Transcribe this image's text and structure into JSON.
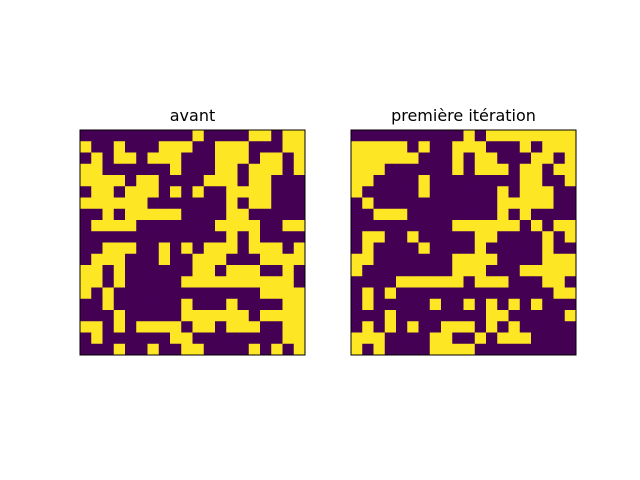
{
  "chart_data": [
    {
      "type": "heatmap",
      "title": "avant",
      "rows": 20,
      "cols": 20,
      "axes_visible": false,
      "colormap": "viridis",
      "colors": {
        "0": "#440154",
        "1": "#fde725"
      },
      "matrix": [
        [
          0,
          0,
          0,
          0,
          0,
          0,
          0,
          0,
          0,
          0,
          1,
          0,
          0,
          0,
          0,
          1,
          1,
          0,
          1,
          1
        ],
        [
          1,
          0,
          0,
          1,
          0,
          0,
          0,
          1,
          1,
          1,
          0,
          0,
          1,
          1,
          1,
          0,
          0,
          0,
          1,
          1
        ],
        [
          0,
          1,
          0,
          1,
          1,
          0,
          1,
          1,
          1,
          0,
          0,
          0,
          1,
          1,
          1,
          0,
          1,
          1,
          0,
          1
        ],
        [
          1,
          1,
          0,
          0,
          0,
          0,
          0,
          0,
          1,
          0,
          0,
          0,
          1,
          1,
          0,
          1,
          1,
          1,
          0,
          1
        ],
        [
          1,
          1,
          1,
          1,
          0,
          1,
          1,
          0,
          0,
          0,
          0,
          1,
          1,
          1,
          0,
          1,
          1,
          0,
          0,
          0
        ],
        [
          0,
          1,
          1,
          0,
          1,
          1,
          1,
          0,
          1,
          0,
          1,
          0,
          0,
          1,
          1,
          1,
          1,
          0,
          0,
          0
        ],
        [
          1,
          1,
          1,
          1,
          1,
          1,
          0,
          0,
          0,
          0,
          0,
          0,
          0,
          1,
          0,
          1,
          1,
          0,
          0,
          0
        ],
        [
          0,
          0,
          1,
          0,
          1,
          1,
          1,
          1,
          1,
          0,
          0,
          0,
          0,
          1,
          1,
          0,
          0,
          0,
          0,
          0
        ],
        [
          0,
          1,
          1,
          1,
          1,
          0,
          0,
          0,
          0,
          0,
          0,
          0,
          1,
          1,
          1,
          1,
          0,
          0,
          1,
          1
        ],
        [
          0,
          0,
          0,
          0,
          0,
          0,
          0,
          0,
          0,
          0,
          0,
          0,
          0,
          1,
          0,
          1,
          0,
          0,
          0,
          0
        ],
        [
          0,
          0,
          1,
          1,
          1,
          0,
          0,
          1,
          0,
          1,
          0,
          1,
          1,
          1,
          0,
          1,
          1,
          1,
          0,
          1
        ],
        [
          0,
          1,
          1,
          1,
          0,
          0,
          0,
          1,
          0,
          0,
          1,
          1,
          1,
          0,
          0,
          0,
          1,
          1,
          1,
          1
        ],
        [
          1,
          1,
          0,
          1,
          0,
          0,
          0,
          0,
          0,
          0,
          1,
          1,
          0,
          1,
          1,
          1,
          0,
          0,
          1,
          0
        ],
        [
          1,
          1,
          0,
          1,
          0,
          0,
          0,
          0,
          0,
          1,
          1,
          1,
          1,
          1,
          1,
          1,
          1,
          1,
          1,
          0
        ],
        [
          1,
          0,
          1,
          0,
          0,
          0,
          0,
          0,
          0,
          0,
          0,
          0,
          0,
          0,
          0,
          0,
          1,
          1,
          1,
          1
        ],
        [
          0,
          0,
          1,
          0,
          0,
          0,
          0,
          0,
          0,
          1,
          0,
          0,
          0,
          1,
          0,
          0,
          0,
          0,
          1,
          1
        ],
        [
          0,
          0,
          0,
          1,
          0,
          0,
          0,
          0,
          0,
          1,
          1,
          1,
          1,
          1,
          1,
          0,
          1,
          1,
          1,
          1
        ],
        [
          1,
          1,
          0,
          1,
          0,
          1,
          1,
          1,
          1,
          0,
          1,
          1,
          0,
          1,
          1,
          1,
          0,
          0,
          1,
          1
        ],
        [
          0,
          1,
          0,
          0,
          0,
          0,
          0,
          0,
          1,
          1,
          0,
          0,
          0,
          0,
          0,
          0,
          0,
          0,
          1,
          1
        ],
        [
          0,
          0,
          0,
          1,
          0,
          0,
          1,
          0,
          0,
          1,
          1,
          0,
          0,
          0,
          0,
          1,
          0,
          1,
          0,
          1
        ]
      ]
    },
    {
      "type": "heatmap",
      "title": "première itération",
      "rows": 20,
      "cols": 20,
      "axes_visible": false,
      "colormap": "viridis",
      "colors": {
        "0": "#440154",
        "1": "#fde725"
      },
      "matrix": [
        [
          0,
          0,
          0,
          0,
          0,
          0,
          0,
          0,
          0,
          0,
          1,
          0,
          1,
          1,
          1,
          1,
          1,
          1,
          1,
          1
        ],
        [
          1,
          1,
          1,
          1,
          1,
          0,
          1,
          0,
          0,
          1,
          1,
          1,
          0,
          0,
          0,
          1,
          0,
          1,
          1,
          1
        ],
        [
          1,
          1,
          1,
          1,
          1,
          1,
          0,
          0,
          0,
          1,
          0,
          1,
          1,
          0,
          0,
          0,
          1,
          1,
          0,
          1
        ],
        [
          1,
          1,
          1,
          0,
          0,
          0,
          0,
          0,
          0,
          1,
          0,
          1,
          1,
          1,
          0,
          1,
          1,
          0,
          1,
          1
        ],
        [
          1,
          1,
          0,
          0,
          0,
          0,
          1,
          0,
          0,
          0,
          0,
          0,
          0,
          0,
          0,
          1,
          1,
          0,
          0,
          1
        ],
        [
          1,
          0,
          0,
          0,
          0,
          0,
          1,
          0,
          0,
          0,
          0,
          0,
          0,
          1,
          0,
          1,
          1,
          1,
          0,
          0
        ],
        [
          0,
          1,
          0,
          0,
          0,
          0,
          0,
          0,
          0,
          0,
          0,
          0,
          0,
          1,
          1,
          1,
          1,
          1,
          0,
          0
        ],
        [
          0,
          0,
          1,
          1,
          1,
          0,
          0,
          0,
          0,
          0,
          0,
          0,
          0,
          1,
          0,
          1,
          0,
          0,
          0,
          0
        ],
        [
          0,
          0,
          0,
          0,
          0,
          0,
          0,
          0,
          0,
          1,
          1,
          1,
          1,
          1,
          1,
          0,
          1,
          0,
          1,
          1
        ],
        [
          0,
          1,
          1,
          0,
          0,
          1,
          0,
          0,
          0,
          0,
          0,
          1,
          1,
          0,
          0,
          0,
          0,
          1,
          0,
          1
        ],
        [
          0,
          1,
          0,
          0,
          0,
          0,
          1,
          0,
          0,
          0,
          0,
          1,
          0,
          0,
          0,
          0,
          0,
          1,
          0,
          0
        ],
        [
          1,
          1,
          0,
          0,
          0,
          0,
          0,
          0,
          0,
          1,
          1,
          1,
          1,
          0,
          0,
          0,
          0,
          1,
          1,
          1
        ],
        [
          1,
          0,
          0,
          0,
          0,
          0,
          0,
          0,
          0,
          1,
          1,
          1,
          0,
          0,
          0,
          1,
          1,
          1,
          1,
          1
        ],
        [
          0,
          0,
          0,
          0,
          1,
          1,
          1,
          1,
          1,
          1,
          0,
          1,
          1,
          1,
          0,
          0,
          0,
          1,
          1,
          0
        ],
        [
          0,
          1,
          0,
          1,
          0,
          0,
          0,
          0,
          0,
          0,
          0,
          0,
          0,
          0,
          0,
          0,
          0,
          0,
          1,
          1
        ],
        [
          0,
          1,
          0,
          0,
          0,
          0,
          0,
          1,
          0,
          0,
          1,
          0,
          1,
          0,
          1,
          0,
          1,
          0,
          0,
          0
        ],
        [
          0,
          0,
          0,
          1,
          0,
          0,
          0,
          0,
          0,
          0,
          0,
          0,
          1,
          1,
          0,
          0,
          0,
          0,
          0,
          1
        ],
        [
          0,
          1,
          0,
          1,
          0,
          1,
          0,
          0,
          1,
          1,
          1,
          0,
          1,
          0,
          1,
          0,
          0,
          0,
          0,
          0
        ],
        [
          1,
          1,
          1,
          0,
          0,
          0,
          0,
          1,
          1,
          0,
          0,
          1,
          0,
          1,
          1,
          1,
          0,
          0,
          0,
          0
        ],
        [
          1,
          0,
          1,
          0,
          0,
          0,
          0,
          1,
          1,
          1,
          1,
          0,
          0,
          0,
          0,
          0,
          0,
          0,
          0,
          0
        ]
      ]
    }
  ]
}
